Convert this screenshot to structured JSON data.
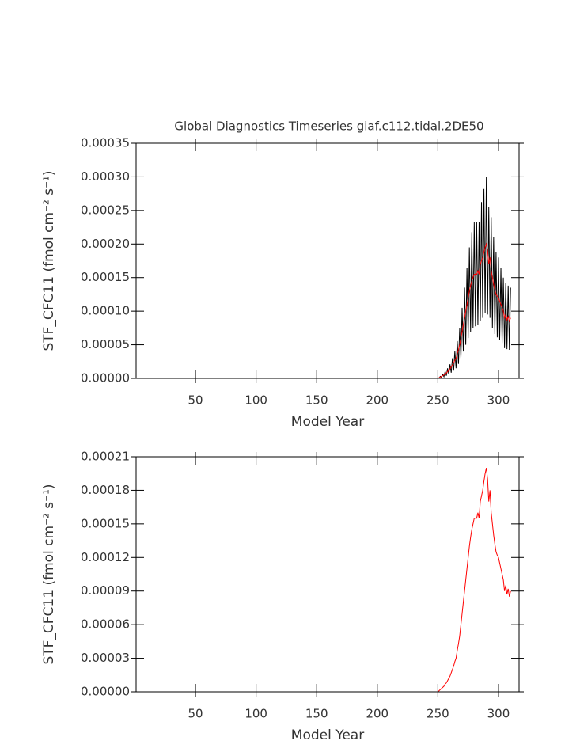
{
  "chart_data": [
    {
      "type": "line",
      "title": "Global Diagnostics Timeseries giaf.c112.tidal.2DE50",
      "xlabel": "Model Year",
      "ylabel": "STF_CFC11 (fmol cm⁻² s⁻¹)",
      "xlim": [
        1,
        317
      ],
      "xticks": [
        50,
        100,
        150,
        200,
        250,
        300
      ],
      "ylim": [
        0,
        0.00035
      ],
      "yticks": [
        {
          "value": 0,
          "label": "0.00000"
        },
        {
          "value": 5e-05,
          "label": "0.00005"
        },
        {
          "value": 0.0001,
          "label": "0.00010"
        },
        {
          "value": 0.00015,
          "label": "0.00015"
        },
        {
          "value": 0.0002,
          "label": "0.00020"
        },
        {
          "value": 0.00025,
          "label": "0.00025"
        },
        {
          "value": 0.0003,
          "label": "0.00030"
        },
        {
          "value": 0.00035,
          "label": "0.00035"
        }
      ],
      "x": [
        1,
        250,
        251,
        252,
        253,
        254,
        255,
        256,
        257,
        258,
        259,
        260,
        261,
        262,
        263,
        264,
        265,
        266,
        267,
        268,
        269,
        270,
        271,
        272,
        273,
        274,
        275,
        276,
        277,
        278,
        279,
        280,
        281,
        282,
        283,
        284,
        285,
        286,
        287,
        288,
        289,
        290,
        291,
        292,
        293,
        294,
        295,
        296,
        297,
        298,
        299,
        300,
        301,
        302,
        303,
        304,
        305,
        306,
        307,
        308,
        309,
        310
      ],
      "series": [
        {
          "color": "#000000",
          "values": [
            0,
            0,
            5e-07,
            3e-06,
            1.5e-06,
            6e-06,
            2.5e-06,
            1.05e-05,
            4e-06,
            1.5e-05,
            6e-06,
            2.1e-05,
            8.5e-06,
            3e-05,
            1.15e-05,
            4.05e-05,
            1.5e-05,
            5.55e-05,
            2.15e-05,
            7.5e-05,
            3e-05,
            0.000105,
            4e-05,
            0.000135,
            5e-05,
            0.000165,
            6e-05,
            0.000195,
            6.9e-05,
            0.0002175,
            7.5e-05,
            0.0002325,
            7.75e-05,
            0.0002325,
            8e-05,
            0.0002325,
            8.5e-05,
            0.0002625,
            9e-05,
            0.000282,
            9.75e-05,
            0.0003,
            9.5e-05,
            0.000255,
            9e-05,
            0.00024,
            7.5e-05,
            0.00021,
            6.6e-05,
            0.0001875,
            6.1e-05,
            0.00018,
            5.75e-05,
            0.000165,
            5.25e-05,
            0.00015,
            4.5e-05,
            0.0001425,
            4.35e-05,
            0.000138,
            4.25e-05,
            0.000135
          ]
        },
        {
          "color": "#ff0000",
          "values": [
            0,
            0,
            1e-06,
            2e-06,
            3e-06,
            4e-06,
            5e-06,
            7e-06,
            8e-06,
            1e-05,
            1.2e-05,
            1.4e-05,
            1.7e-05,
            2e-05,
            2.3e-05,
            2.7e-05,
            3e-05,
            3.7e-05,
            4.3e-05,
            5e-05,
            6e-05,
            7e-05,
            8e-05,
            9e-05,
            0.0001,
            0.00011,
            0.00012,
            0.00013,
            0.000138,
            0.000145,
            0.00015,
            0.000155,
            0.000155,
            0.000155,
            0.00016,
            0.000155,
            0.00017,
            0.000175,
            0.00018,
            0.000188,
            0.000195,
            0.0002,
            0.00019,
            0.00017,
            0.00018,
            0.00016,
            0.00015,
            0.00014,
            0.000132,
            0.000125,
            0.000122,
            0.00012,
            0.000115,
            0.00011,
            0.000105,
            0.0001,
            9e-05,
            9.5e-05,
            8.7e-05,
            9.2e-05,
            8.5e-05,
            9e-05
          ]
        }
      ]
    },
    {
      "type": "line",
      "xlabel": "Model Year",
      "ylabel": "STF_CFC11 (fmol cm⁻² s⁻¹)",
      "xlim": [
        1,
        317
      ],
      "xticks": [
        50,
        100,
        150,
        200,
        250,
        300
      ],
      "ylim": [
        0,
        0.00021
      ],
      "yticks": [
        {
          "value": 0,
          "label": "0.00000"
        },
        {
          "value": 3e-05,
          "label": "0.00003"
        },
        {
          "value": 6e-05,
          "label": "0.00006"
        },
        {
          "value": 9e-05,
          "label": "0.00009"
        },
        {
          "value": 0.00012,
          "label": "0.00012"
        },
        {
          "value": 0.00015,
          "label": "0.00015"
        },
        {
          "value": 0.00018,
          "label": "0.00018"
        },
        {
          "value": 0.00021,
          "label": "0.00021"
        }
      ],
      "x": [
        1,
        250,
        251,
        252,
        253,
        254,
        255,
        256,
        257,
        258,
        259,
        260,
        261,
        262,
        263,
        264,
        265,
        266,
        267,
        268,
        269,
        270,
        271,
        272,
        273,
        274,
        275,
        276,
        277,
        278,
        279,
        280,
        281,
        282,
        283,
        284,
        285,
        286,
        287,
        288,
        289,
        290,
        291,
        292,
        293,
        294,
        295,
        296,
        297,
        298,
        299,
        300,
        301,
        302,
        303,
        304,
        305,
        306,
        307,
        308,
        309,
        310
      ],
      "series": [
        {
          "color": "#ff0000",
          "values": [
            0,
            0,
            1e-06,
            2e-06,
            3e-06,
            4e-06,
            5e-06,
            7e-06,
            8e-06,
            1e-05,
            1.2e-05,
            1.4e-05,
            1.7e-05,
            2e-05,
            2.3e-05,
            2.7e-05,
            3e-05,
            3.7e-05,
            4.3e-05,
            5e-05,
            6e-05,
            7e-05,
            8e-05,
            9e-05,
            0.0001,
            0.00011,
            0.00012,
            0.00013,
            0.000138,
            0.000145,
            0.00015,
            0.000155,
            0.000155,
            0.000155,
            0.00016,
            0.000155,
            0.00017,
            0.000175,
            0.00018,
            0.000188,
            0.000195,
            0.0002,
            0.00019,
            0.00017,
            0.00018,
            0.00016,
            0.00015,
            0.00014,
            0.000132,
            0.000125,
            0.000122,
            0.00012,
            0.000115,
            0.00011,
            0.000105,
            0.0001,
            9e-05,
            9.5e-05,
            8.7e-05,
            9.2e-05,
            8.5e-05,
            9e-05
          ]
        }
      ]
    }
  ]
}
